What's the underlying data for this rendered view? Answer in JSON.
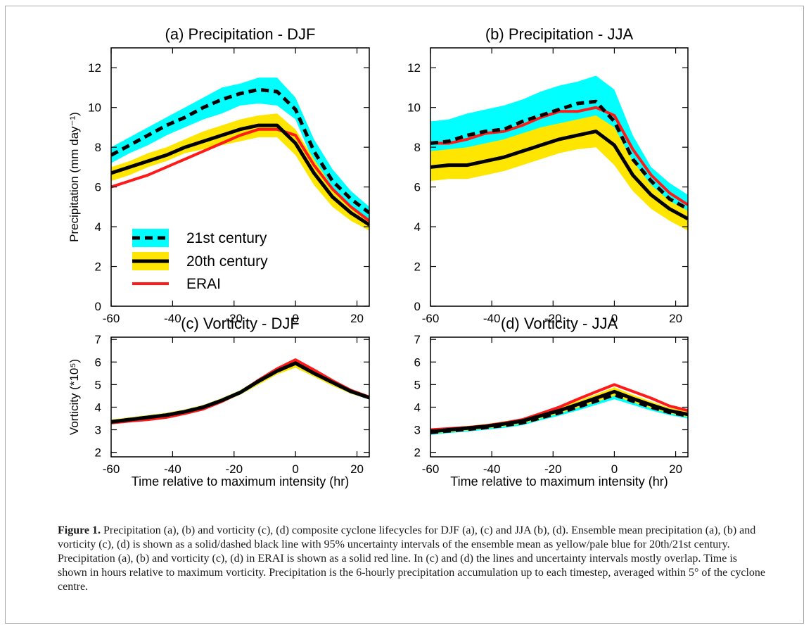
{
  "colors": {
    "ensemble_21st_band": "#00ffff",
    "ensemble_20th_band": "#ffe600",
    "ensemble_mean": "#000000",
    "erai": "#ff1a1a"
  },
  "legend": {
    "items": [
      {
        "label": "21st century",
        "line": "dashed",
        "band_color": "#00ffff",
        "line_color": "#000000"
      },
      {
        "label": "20th century",
        "line": "solid",
        "band_color": "#ffe600",
        "line_color": "#000000"
      },
      {
        "label": "ERAI",
        "line": "solid",
        "band_color": null,
        "line_color": "#ff1a1a"
      }
    ]
  },
  "caption": {
    "label": "Figure 1.",
    "text": "Precipitation (a), (b) and vorticity (c), (d) composite cyclone lifecycles for DJF (a), (c) and JJA (b), (d). Ensemble mean precipitation (a), (b) and vorticity (c), (d) is shown as a solid/dashed black line with 95% uncertainty intervals of the ensemble mean as yellow/pale blue for 20th/21st century. Precipitation (a), (b) and vorticity (c), (d) in ERAI is shown as a solid red line. In (c) and (d) the lines and uncertainty intervals mostly overlap. Time is shown in hours relative to maximum vorticity. Precipitation is the 6-hourly precipitation accumulation up to each timestep, averaged within 5° of the cyclone centre."
  },
  "chart_data": [
    {
      "panel": "a",
      "type": "line",
      "title": "(a) Precipitation - DJF",
      "xlabel": "",
      "ylabel": "Precipitation (mm day⁻¹)",
      "xlim": [
        -60,
        24
      ],
      "ylim": [
        0,
        13
      ],
      "xticks": [
        -60,
        -40,
        -20,
        0,
        20
      ],
      "yticks": [
        0,
        2,
        4,
        6,
        8,
        10,
        12
      ],
      "legend_position": "bottom-left",
      "x": [
        -60,
        -54,
        -48,
        -42,
        -36,
        -30,
        -24,
        -18,
        -12,
        -6,
        0,
        6,
        12,
        18,
        24
      ],
      "bands": [
        {
          "name": "21st century",
          "lower": [
            7.2,
            7.7,
            8.1,
            8.6,
            9.0,
            9.4,
            9.7,
            10.1,
            10.2,
            10.1,
            9.4,
            7.2,
            5.8,
            5.0,
            4.4
          ],
          "upper": [
            8.0,
            8.5,
            9.0,
            9.5,
            10.0,
            10.5,
            11.0,
            11.2,
            11.5,
            11.5,
            10.5,
            8.4,
            6.9,
            5.8,
            5.0
          ]
        },
        {
          "name": "20th century",
          "lower": [
            6.3,
            6.6,
            7.0,
            7.3,
            7.7,
            7.9,
            8.1,
            8.3,
            8.5,
            8.5,
            7.6,
            6.1,
            5.0,
            4.3,
            3.8
          ],
          "upper": [
            7.0,
            7.3,
            7.7,
            8.0,
            8.4,
            8.8,
            9.1,
            9.4,
            9.6,
            9.7,
            8.9,
            7.4,
            6.0,
            5.0,
            4.4
          ]
        }
      ],
      "series": [
        {
          "name": "21st century",
          "values": [
            7.6,
            8.1,
            8.6,
            9.1,
            9.5,
            10.0,
            10.4,
            10.7,
            10.9,
            10.8,
            9.9,
            7.8,
            6.3,
            5.4,
            4.7
          ]
        },
        {
          "name": "20th century",
          "values": [
            6.7,
            7.0,
            7.3,
            7.6,
            8.0,
            8.3,
            8.6,
            8.9,
            9.1,
            9.1,
            8.2,
            6.7,
            5.5,
            4.7,
            4.1
          ]
        },
        {
          "name": "ERAI",
          "values": [
            6.0,
            6.3,
            6.6,
            7.0,
            7.4,
            7.8,
            8.2,
            8.6,
            8.9,
            8.9,
            8.6,
            7.1,
            5.9,
            5.0,
            4.3
          ]
        }
      ]
    },
    {
      "panel": "b",
      "type": "line",
      "title": "(b) Precipitation - JJA",
      "xlabel": "",
      "ylabel": "",
      "xlim": [
        -60,
        24
      ],
      "ylim": [
        0,
        13
      ],
      "xticks": [
        -60,
        -40,
        -20,
        0,
        20
      ],
      "yticks": [
        0,
        2,
        4,
        6,
        8,
        10,
        12
      ],
      "x": [
        -60,
        -54,
        -48,
        -42,
        -36,
        -30,
        -24,
        -18,
        -12,
        -6,
        0,
        6,
        12,
        18,
        24
      ],
      "bands": [
        {
          "name": "21st century",
          "lower": [
            7.7,
            7.8,
            8.0,
            8.1,
            8.3,
            8.5,
            8.8,
            9.0,
            9.2,
            9.3,
            8.7,
            6.9,
            5.6,
            4.8,
            4.2
          ],
          "upper": [
            9.3,
            9.4,
            9.7,
            9.9,
            10.1,
            10.4,
            10.8,
            11.1,
            11.3,
            11.6,
            10.9,
            8.6,
            7.0,
            6.2,
            5.6
          ]
        },
        {
          "name": "20th century",
          "lower": [
            6.3,
            6.4,
            6.4,
            6.6,
            6.8,
            7.1,
            7.4,
            7.7,
            7.9,
            8.0,
            7.1,
            5.8,
            4.9,
            4.3,
            3.8
          ],
          "upper": [
            7.8,
            7.9,
            8.0,
            8.2,
            8.4,
            8.7,
            9.0,
            9.2,
            9.4,
            9.6,
            9.0,
            7.3,
            6.1,
            5.3,
            4.8
          ]
        }
      ],
      "series": [
        {
          "name": "21st century",
          "values": [
            8.2,
            8.3,
            8.6,
            8.8,
            8.9,
            9.3,
            9.6,
            9.9,
            10.2,
            10.3,
            9.3,
            7.4,
            6.3,
            5.4,
            4.9
          ]
        },
        {
          "name": "20th century",
          "values": [
            7.0,
            7.1,
            7.1,
            7.3,
            7.5,
            7.8,
            8.1,
            8.4,
            8.6,
            8.8,
            8.1,
            6.6,
            5.6,
            4.9,
            4.4
          ]
        },
        {
          "name": "ERAI",
          "values": [
            8.2,
            8.2,
            8.4,
            8.7,
            8.8,
            9.1,
            9.5,
            9.8,
            9.8,
            10.0,
            9.6,
            7.9,
            6.6,
            5.7,
            5.1
          ]
        }
      ]
    },
    {
      "panel": "c",
      "type": "line",
      "title": "(c) Vorticity - DJF",
      "xlabel": "Time relative to maximum intensity (hr)",
      "ylabel": "Vorticity (*10⁵)",
      "xlim": [
        -60,
        24
      ],
      "ylim": [
        1.8,
        7.1
      ],
      "xticks": [
        -60,
        -40,
        -20,
        0,
        20
      ],
      "yticks": [
        2,
        3,
        4,
        5,
        6,
        7
      ],
      "x": [
        -60,
        -54,
        -48,
        -42,
        -36,
        -30,
        -24,
        -18,
        -12,
        -6,
        0,
        6,
        12,
        18,
        24
      ],
      "bands": [
        {
          "name": "21st century",
          "lower": [
            3.25,
            3.35,
            3.45,
            3.55,
            3.7,
            3.9,
            4.2,
            4.55,
            5.0,
            5.45,
            5.75,
            5.35,
            4.95,
            4.6,
            4.35
          ],
          "upper": [
            3.45,
            3.55,
            3.65,
            3.75,
            3.9,
            4.1,
            4.4,
            4.75,
            5.25,
            5.75,
            6.1,
            5.65,
            5.2,
            4.8,
            4.5
          ]
        },
        {
          "name": "20th century",
          "lower": [
            3.25,
            3.35,
            3.45,
            3.55,
            3.7,
            3.9,
            4.2,
            4.55,
            5.0,
            5.45,
            5.75,
            5.35,
            4.95,
            4.6,
            4.35
          ],
          "upper": [
            3.45,
            3.55,
            3.65,
            3.75,
            3.9,
            4.1,
            4.4,
            4.75,
            5.25,
            5.75,
            6.1,
            5.65,
            5.2,
            4.8,
            4.5
          ]
        }
      ],
      "series": [
        {
          "name": "21st century",
          "values": [
            3.35,
            3.45,
            3.55,
            3.65,
            3.8,
            4.0,
            4.3,
            4.65,
            5.15,
            5.6,
            5.95,
            5.5,
            5.1,
            4.7,
            4.42
          ]
        },
        {
          "name": "20th century",
          "values": [
            3.35,
            3.45,
            3.55,
            3.65,
            3.8,
            4.0,
            4.3,
            4.65,
            5.15,
            5.6,
            5.95,
            5.5,
            5.1,
            4.7,
            4.42
          ]
        },
        {
          "name": "ERAI",
          "values": [
            3.3,
            3.38,
            3.45,
            3.55,
            3.72,
            3.92,
            4.25,
            4.65,
            5.2,
            5.7,
            6.1,
            5.65,
            5.18,
            4.75,
            4.45
          ]
        }
      ]
    },
    {
      "panel": "d",
      "type": "line",
      "title": "(d) Vorticity - JJA",
      "xlabel": "Time relative to maximum intensity (hr)",
      "ylabel": "",
      "xlim": [
        -60,
        24
      ],
      "ylim": [
        1.8,
        7.1
      ],
      "xticks": [
        -60,
        -40,
        -20,
        0,
        20
      ],
      "yticks": [
        2,
        3,
        4,
        5,
        6,
        7
      ],
      "x": [
        -60,
        -54,
        -48,
        -42,
        -36,
        -30,
        -24,
        -18,
        -12,
        -6,
        0,
        6,
        12,
        18,
        24
      ],
      "bands": [
        {
          "name": "21st century",
          "lower": [
            2.78,
            2.85,
            2.92,
            3.0,
            3.08,
            3.2,
            3.42,
            3.62,
            3.85,
            4.1,
            4.35,
            4.1,
            3.85,
            3.65,
            3.5
          ],
          "upper": [
            2.98,
            3.05,
            3.12,
            3.2,
            3.3,
            3.42,
            3.65,
            3.88,
            4.15,
            4.45,
            4.75,
            4.45,
            4.15,
            3.9,
            3.75
          ]
        },
        {
          "name": "20th century",
          "lower": [
            2.82,
            2.9,
            2.97,
            3.05,
            3.15,
            3.28,
            3.5,
            3.72,
            3.97,
            4.23,
            4.5,
            4.22,
            3.95,
            3.72,
            3.57
          ],
          "upper": [
            3.02,
            3.1,
            3.17,
            3.25,
            3.37,
            3.5,
            3.75,
            3.98,
            4.27,
            4.57,
            4.88,
            4.55,
            4.25,
            3.97,
            3.8
          ]
        }
      ],
      "series": [
        {
          "name": "21st century",
          "values": [
            2.88,
            2.95,
            3.02,
            3.1,
            3.19,
            3.31,
            3.53,
            3.75,
            4.0,
            4.27,
            4.55,
            4.27,
            4.0,
            3.77,
            3.62
          ]
        },
        {
          "name": "20th century",
          "values": [
            2.92,
            3.0,
            3.07,
            3.15,
            3.26,
            3.39,
            3.62,
            3.85,
            4.12,
            4.4,
            4.69,
            4.38,
            4.1,
            3.84,
            3.68
          ]
        },
        {
          "name": "ERAI",
          "values": [
            3.0,
            3.05,
            3.1,
            3.18,
            3.3,
            3.45,
            3.72,
            4.0,
            4.35,
            4.68,
            5.0,
            4.7,
            4.4,
            4.05,
            3.85
          ]
        }
      ]
    }
  ]
}
